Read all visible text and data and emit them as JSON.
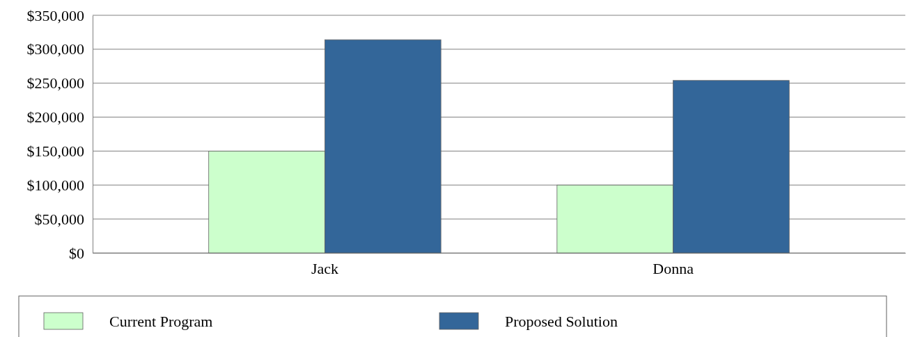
{
  "chart_data": {
    "type": "bar",
    "categories": [
      "Jack",
      "Donna"
    ],
    "series": [
      {
        "name": "Current Program",
        "color": "#ccffcc",
        "values": [
          150000,
          100000
        ]
      },
      {
        "name": "Proposed Solution",
        "color": "#336699",
        "values": [
          314000,
          254000
        ]
      }
    ],
    "ylim": [
      0,
      350000
    ],
    "yticks": [
      {
        "value": 0,
        "label": "$0"
      },
      {
        "value": 50000,
        "label": "$50,000"
      },
      {
        "value": 100000,
        "label": "$100,000"
      },
      {
        "value": 150000,
        "label": "$150,000"
      },
      {
        "value": 200000,
        "label": "$200,000"
      },
      {
        "value": 250000,
        "label": "$250,000"
      },
      {
        "value": 300000,
        "label": "$300,000"
      },
      {
        "value": 350000,
        "label": "$350,000"
      }
    ],
    "grid": "y",
    "legend": "bottom"
  }
}
